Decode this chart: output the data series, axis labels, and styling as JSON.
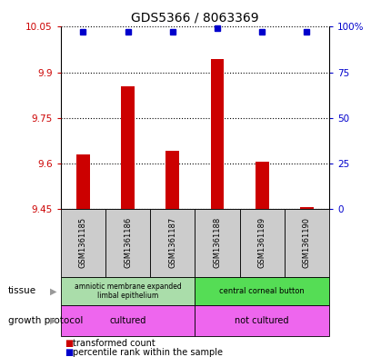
{
  "title": "GDS5366 / 8063369",
  "samples": [
    "GSM1361185",
    "GSM1361186",
    "GSM1361187",
    "GSM1361188",
    "GSM1361189",
    "GSM1361190"
  ],
  "red_values": [
    9.63,
    9.855,
    9.64,
    9.945,
    9.605,
    9.455
  ],
  "blue_values": [
    97,
    97,
    97,
    99,
    97,
    97
  ],
  "ylim_left": [
    9.45,
    10.05
  ],
  "ylim_right": [
    0,
    100
  ],
  "yticks_left": [
    9.45,
    9.6,
    9.75,
    9.9,
    10.05
  ],
  "yticks_right": [
    0,
    25,
    50,
    75,
    100
  ],
  "ytick_labels_left": [
    "9.45",
    "9.6",
    "9.75",
    "9.9",
    "10.05"
  ],
  "ytick_labels_right": [
    "0",
    "25",
    "50",
    "75",
    "100%"
  ],
  "red_color": "#cc0000",
  "blue_color": "#0000cc",
  "tissue_left": "amniotic membrane expanded\nlimbal epithelium",
  "tissue_right": "central corneal button",
  "protocol_left": "cultured",
  "protocol_right": "not cultured",
  "tissue_bg_left": "#aaddaa",
  "tissue_bg_right": "#55dd55",
  "protocol_bg": "#ee66ee",
  "sample_bg": "#cccccc",
  "legend_red": "transformed count",
  "legend_blue": "percentile rank within the sample",
  "label_tissue": "tissue",
  "label_protocol": "growth protocol",
  "bar_width": 0.3
}
